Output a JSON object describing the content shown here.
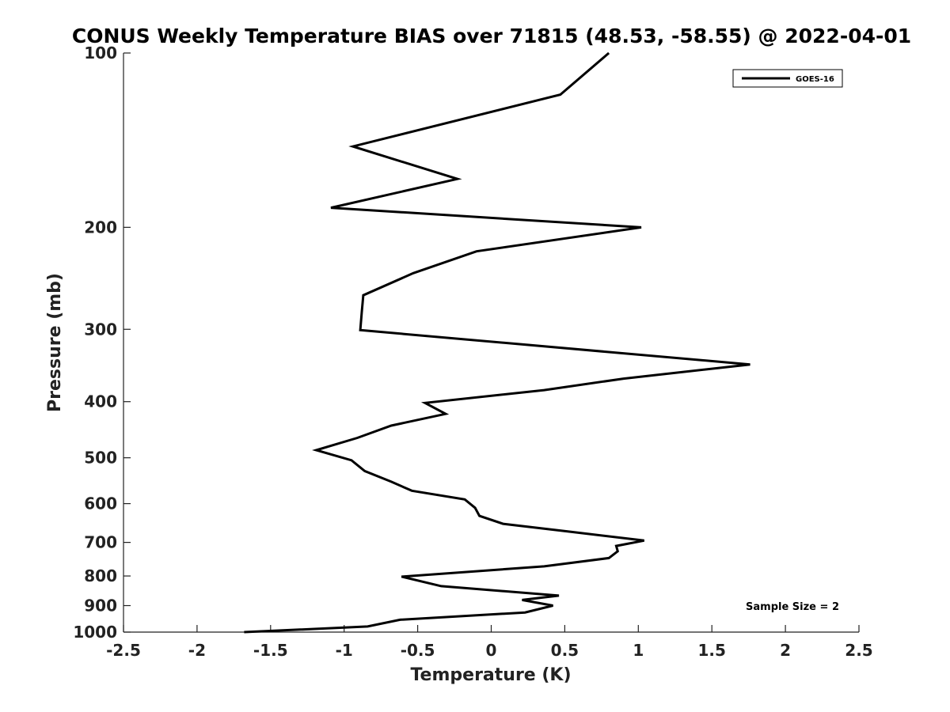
{
  "chart_data": {
    "type": "line",
    "title": "CONUS Weekly Temperature BIAS over 71815 (48.53, -58.55) @ 2022-04-01",
    "xlabel": "Temperature (K)",
    "ylabel": "Pressure (mb)",
    "xlim": [
      -2.5,
      2.5
    ],
    "ylim": [
      1000,
      100
    ],
    "y_scale": "log",
    "grid": false,
    "legend_position": "top-right",
    "x_ticks": [
      -2.5,
      -2,
      -1.5,
      -1,
      -0.5,
      0,
      0.5,
      1,
      1.5,
      2,
      2.5
    ],
    "x_tick_labels": [
      "-2.5",
      "-2",
      "-1.5",
      "-1",
      "-0.5",
      "0",
      "0.5",
      "1",
      "1.5",
      "2",
      "2.5"
    ],
    "y_ticks": [
      100,
      200,
      300,
      400,
      500,
      600,
      700,
      800,
      900,
      1000
    ],
    "y_tick_labels": [
      "100",
      "200",
      "300",
      "400",
      "500",
      "600",
      "700",
      "800",
      "900",
      "1000"
    ],
    "series": [
      {
        "name": "GOES-16",
        "color": "#000000",
        "x": [
          0.8,
          0.47,
          -0.94,
          -0.23,
          -1.09,
          1.02,
          -0.1,
          -0.53,
          -0.87,
          -0.88,
          -0.89,
          1.76,
          0.9,
          0.36,
          -0.45,
          -0.31,
          -0.68,
          -0.91,
          -1.19,
          -0.95,
          -0.86,
          -0.68,
          -0.54,
          -0.18,
          -0.11,
          -0.08,
          0.08,
          0.52,
          1.04,
          0.85,
          0.86,
          0.8,
          0.36,
          -0.61,
          -0.34,
          0.46,
          0.21,
          0.42,
          0.23,
          -0.62,
          -0.84,
          -1.68
        ],
        "y": [
          100,
          118,
          145,
          165,
          185,
          200,
          220,
          240,
          262,
          280,
          301,
          345,
          365,
          382,
          402,
          420,
          440,
          462,
          485,
          505,
          527,
          550,
          570,
          590,
          610,
          630,
          650,
          670,
          695,
          710,
          725,
          745,
          770,
          802,
          833,
          865,
          880,
          900,
          925,
          952,
          978,
          1000
        ]
      }
    ],
    "annotations": [
      "Sample Size = 2"
    ]
  }
}
